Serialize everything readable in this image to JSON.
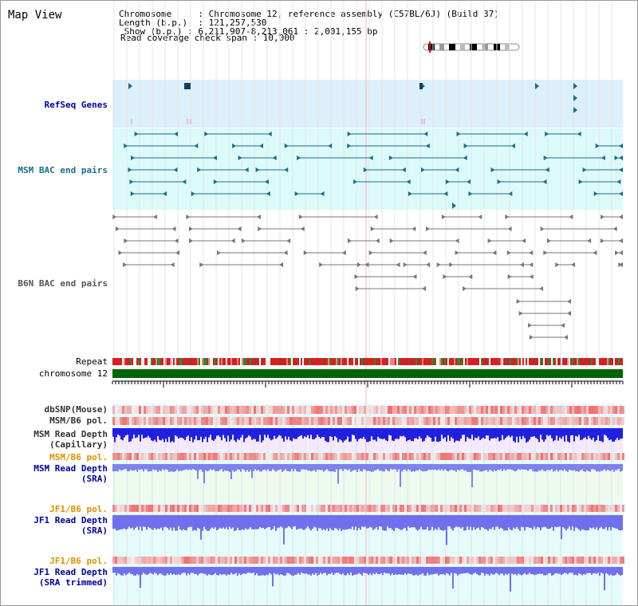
{
  "header": {
    "title": "Map View",
    "info": "Chromosome     : Chromosome 12, reference assembly (C57BL/6J) (Build 37)\nLength (b.p.)  : 121,257,530\n Show (b.p.) : 6,211,907-8,213,061 : 2,001,155 bp",
    "read_span": "Read coverage check span : 10,000"
  },
  "tracks": {
    "refseq": "RefSeq Genes",
    "msm_bac": "MSM BAC end pairs",
    "b6n_bac": "B6N BAC end pairs",
    "repeat": "Repeat",
    "chromosome": "chromosome 12",
    "dbsnp": "dbSNP(Mouse)",
    "msm_b6_pol": "MSM/B6 pol.",
    "msm_depth_cap": "MSM Read Depth\n(Capillary)",
    "msm_b6_pol_2": "MSM/B6 pol.",
    "msm_depth_sra": "MSM Read Depth\n(SRA)",
    "jf1_b6_pol": "JF1/B6 pol.",
    "jf1_depth_sra": "JF1 Read Depth\n(SRA)",
    "jf1_b6_pol_2": "JF1/B6 pol.",
    "jf1_depth_trim": "JF1 Read Depth\n(SRA trimmed)"
  },
  "axis": {
    "ticks": [
      "6400000",
      "6800000",
      "7200000",
      "7600000",
      "8000000"
    ]
  },
  "colors": {
    "refseq_bg": "#dcf0fb",
    "msm_bac_bg": "#dcfafa",
    "msm_bac_line": "#1a6e8c",
    "b6n_line": "#777777",
    "chromosome": "#006400",
    "label_blue": "#0000a0",
    "label_orange": "#e09000",
    "label_gray": "#333333"
  }
}
